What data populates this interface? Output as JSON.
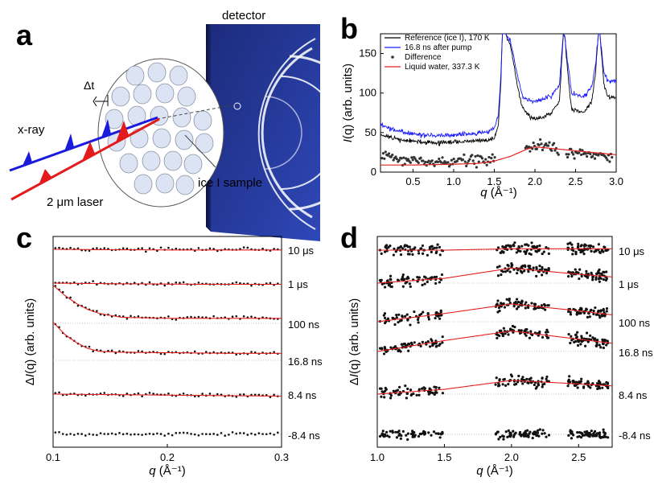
{
  "panels": {
    "a": {
      "label": "a",
      "detector": "detector",
      "dt": "Δt",
      "xray": "x-ray",
      "laser": "2 μm laser",
      "sample": "ice I sample"
    },
    "b": {
      "label": "b"
    },
    "c": {
      "label": "c"
    },
    "d": {
      "label": "d"
    }
  },
  "colors": {
    "black": "#000000",
    "blue": "#1a1aff",
    "red": "#e32020",
    "diff": "#333333",
    "dotted": "#aaaaaa"
  },
  "chart_data": [
    {
      "panel": "b",
      "type": "line",
      "xlabel": "q (Å⁻¹)",
      "ylabel": "I(q) (arb. units)",
      "xlim": [
        0.1,
        3.0
      ],
      "ylim": [
        0,
        175
      ],
      "xticks": [
        "0.5",
        "1.0",
        "1.5",
        "2.0",
        "2.5",
        "3.0"
      ],
      "yticks": [
        "0",
        "50",
        "100",
        "150"
      ],
      "legend_position": "top-left",
      "series": [
        {
          "name": "Reference (ice I), 170 K",
          "color": "#000000",
          "x": [
            0.1,
            0.2,
            0.4,
            0.6,
            0.8,
            1.0,
            1.2,
            1.4,
            1.5,
            1.55,
            1.58,
            1.6,
            1.62,
            1.64,
            1.7,
            1.8,
            1.85,
            1.9,
            1.95,
            2.0,
            2.1,
            2.2,
            2.3,
            2.33,
            2.35,
            2.37,
            2.39,
            2.45,
            2.6,
            2.7,
            2.75,
            2.78,
            2.8,
            2.85,
            2.9,
            3.0
          ],
          "y": [
            48,
            44,
            40,
            38,
            37,
            38,
            39,
            40,
            43,
            60,
            110,
            175,
            175,
            175,
            160,
            100,
            80,
            75,
            70,
            68,
            70,
            75,
            90,
            140,
            175,
            170,
            140,
            80,
            75,
            90,
            130,
            175,
            175,
            110,
            95,
            95
          ]
        },
        {
          "name": "16.8 ns after pump",
          "color": "#1a1aff",
          "x": [
            0.1,
            0.2,
            0.4,
            0.6,
            0.8,
            1.0,
            1.2,
            1.4,
            1.5,
            1.55,
            1.58,
            1.6,
            1.62,
            1.64,
            1.7,
            1.8,
            1.85,
            1.9,
            1.95,
            2.0,
            2.1,
            2.2,
            2.3,
            2.33,
            2.35,
            2.37,
            2.39,
            2.45,
            2.6,
            2.7,
            2.75,
            2.78,
            2.8,
            2.85,
            2.9,
            3.0
          ],
          "y": [
            60,
            55,
            50,
            47,
            46,
            47,
            48,
            50,
            55,
            70,
            120,
            175,
            175,
            175,
            165,
            115,
            95,
            92,
            90,
            90,
            92,
            97,
            110,
            150,
            175,
            172,
            150,
            100,
            95,
            108,
            140,
            175,
            175,
            125,
            115,
            115
          ]
        },
        {
          "name": "Difference",
          "color": "#333333",
          "x": [
            0.1,
            0.3,
            0.5,
            0.7,
            0.9,
            1.1,
            1.3,
            1.5,
            1.9,
            2.0,
            2.1,
            2.2,
            2.3,
            2.4,
            2.5,
            2.6,
            2.7,
            2.8,
            2.9
          ],
          "y": [
            25,
            17,
            14,
            13,
            13,
            14,
            15,
            16,
            30,
            35,
            33,
            32,
            28,
            26,
            24,
            23,
            22,
            21,
            20
          ]
        },
        {
          "name": "Liquid water, 337.3 K",
          "color": "#e32020",
          "x": [
            0.1,
            0.5,
            1.0,
            1.3,
            1.5,
            1.7,
            1.9,
            2.0,
            2.1,
            2.3,
            2.5,
            2.7,
            2.9,
            3.0
          ],
          "y": [
            9,
            9,
            10,
            11,
            14,
            20,
            29,
            32,
            31,
            29,
            27,
            25,
            23,
            22
          ]
        }
      ]
    },
    {
      "panel": "c",
      "type": "line",
      "xlabel": "q (Å⁻¹)",
      "ylabel": "ΔI(q) (arb. units)",
      "xlim": [
        0.1,
        0.3
      ],
      "xticks": [
        "0.1",
        "0.2",
        "0.3"
      ],
      "series": [
        {
          "name": "10 μs",
          "x": [
            0.1,
            0.15,
            0.2,
            0.25,
            0.3
          ],
          "y": [
            0.0,
            -0.02,
            -0.03,
            -0.03,
            -0.03
          ]
        },
        {
          "name": "1 μs",
          "x": [
            0.1,
            0.15,
            0.2,
            0.25,
            0.3
          ],
          "y": [
            0.0,
            -0.03,
            -0.05,
            -0.06,
            -0.06
          ]
        },
        {
          "name": "100 ns",
          "x": [
            0.1,
            0.11,
            0.12,
            0.13,
            0.14,
            0.16,
            0.2,
            0.25,
            0.3
          ],
          "y": [
            1.9,
            1.4,
            1.0,
            0.7,
            0.5,
            0.3,
            0.25,
            0.25,
            0.25
          ]
        },
        {
          "name": "16.8 ns",
          "x": [
            0.1,
            0.11,
            0.12,
            0.13,
            0.14,
            0.16,
            0.2,
            0.25,
            0.3
          ],
          "y": [
            1.9,
            1.3,
            0.9,
            0.6,
            0.45,
            0.4,
            0.38,
            0.35,
            0.35
          ]
        },
        {
          "name": "8.4 ns",
          "x": [
            0.1,
            0.2,
            0.3
          ],
          "y": [
            0.0,
            -0.05,
            -0.1
          ]
        },
        {
          "name": "-8.4 ns",
          "x": [
            0.1,
            0.2,
            0.3
          ],
          "y": [
            0.0,
            0.0,
            0.0
          ]
        }
      ]
    },
    {
      "panel": "d",
      "type": "line",
      "xlabel": "q (Å⁻¹)",
      "ylabel": "ΔI(q) (arb. units)",
      "xlim": [
        1.0,
        2.75
      ],
      "xticks": [
        "1.0",
        "1.5",
        "2.0",
        "2.5"
      ],
      "series": [
        {
          "name": "10 μs",
          "x": [
            1.0,
            1.5,
            2.0,
            2.5,
            2.75
          ],
          "y": [
            0.0,
            0.0,
            0.1,
            0.1,
            0.1
          ]
        },
        {
          "name": "1 μs",
          "x": [
            1.0,
            1.5,
            2.0,
            2.5,
            2.75
          ],
          "y": [
            0.0,
            0.35,
            1.1,
            0.65,
            0.45
          ]
        },
        {
          "name": "100 ns",
          "x": [
            1.0,
            1.5,
            2.0,
            2.5,
            2.75
          ],
          "y": [
            0.0,
            0.6,
            1.3,
            0.8,
            0.5
          ]
        },
        {
          "name": "16.8 ns",
          "x": [
            1.0,
            1.5,
            2.0,
            2.5,
            2.75
          ],
          "y": [
            0.0,
            0.8,
            1.5,
            0.9,
            0.6
          ]
        },
        {
          "name": "8.4 ns",
          "x": [
            1.0,
            1.5,
            2.0,
            2.5,
            2.75
          ],
          "y": [
            0.0,
            0.35,
            1.0,
            0.75,
            0.6
          ]
        },
        {
          "name": "-8.4 ns",
          "x": [
            1.0,
            2.75
          ],
          "y": [
            0.0,
            0.0
          ]
        }
      ]
    }
  ]
}
